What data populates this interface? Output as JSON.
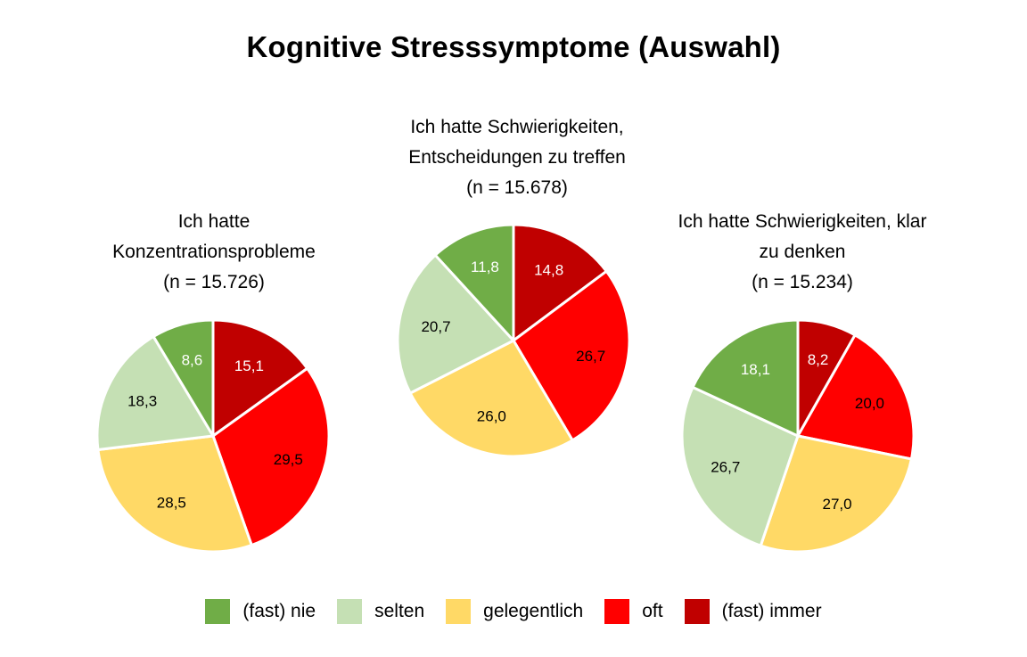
{
  "title": "Kognitive Stresssymptome (Auswahl)",
  "categories": [
    "(fast) nie",
    "selten",
    "gelegentlich",
    "oft",
    "(fast) immer"
  ],
  "colors": [
    "#70ad47",
    "#c5e0b4",
    "#ffd966",
    "#ff0000",
    "#c00000"
  ],
  "chart_data": [
    {
      "type": "pie",
      "title_lines": [
        "Ich hatte",
        "Konzentrationsprobleme",
        "(n = 15.726)"
      ],
      "slices": [
        {
          "category": "(fast) immer",
          "value": 15.1,
          "label": "15,1"
        },
        {
          "category": "oft",
          "value": 29.5,
          "label": "29,5"
        },
        {
          "category": "gelegentlich",
          "value": 28.5,
          "label": "28,5"
        },
        {
          "category": "selten",
          "value": 18.3,
          "label": "18,3"
        },
        {
          "category": "(fast) nie",
          "value": 8.6,
          "label": "8,6"
        }
      ]
    },
    {
      "type": "pie",
      "title_lines": [
        "Ich hatte Schwierigkeiten,",
        "Entscheidungen zu treffen",
        "(n = 15.678)"
      ],
      "slices": [
        {
          "category": "(fast) immer",
          "value": 14.8,
          "label": "14,8"
        },
        {
          "category": "oft",
          "value": 26.7,
          "label": "26,7"
        },
        {
          "category": "gelegentlich",
          "value": 26.0,
          "label": "26,0"
        },
        {
          "category": "selten",
          "value": 20.7,
          "label": "20,7"
        },
        {
          "category": "(fast) nie",
          "value": 11.8,
          "label": "11,8"
        }
      ]
    },
    {
      "type": "pie",
      "title_lines": [
        "Ich hatte Schwierigkeiten, klar",
        "zu denken",
        "(n = 15.234)"
      ],
      "slices": [
        {
          "category": "(fast) immer",
          "value": 8.2,
          "label": "8,2"
        },
        {
          "category": "oft",
          "value": 20.0,
          "label": "20,0"
        },
        {
          "category": "gelegentlich",
          "value": 27.0,
          "label": "27,0"
        },
        {
          "category": "selten",
          "value": 26.7,
          "label": "26,7"
        },
        {
          "category": "(fast) nie",
          "value": 18.1,
          "label": "18,1"
        }
      ]
    }
  ]
}
